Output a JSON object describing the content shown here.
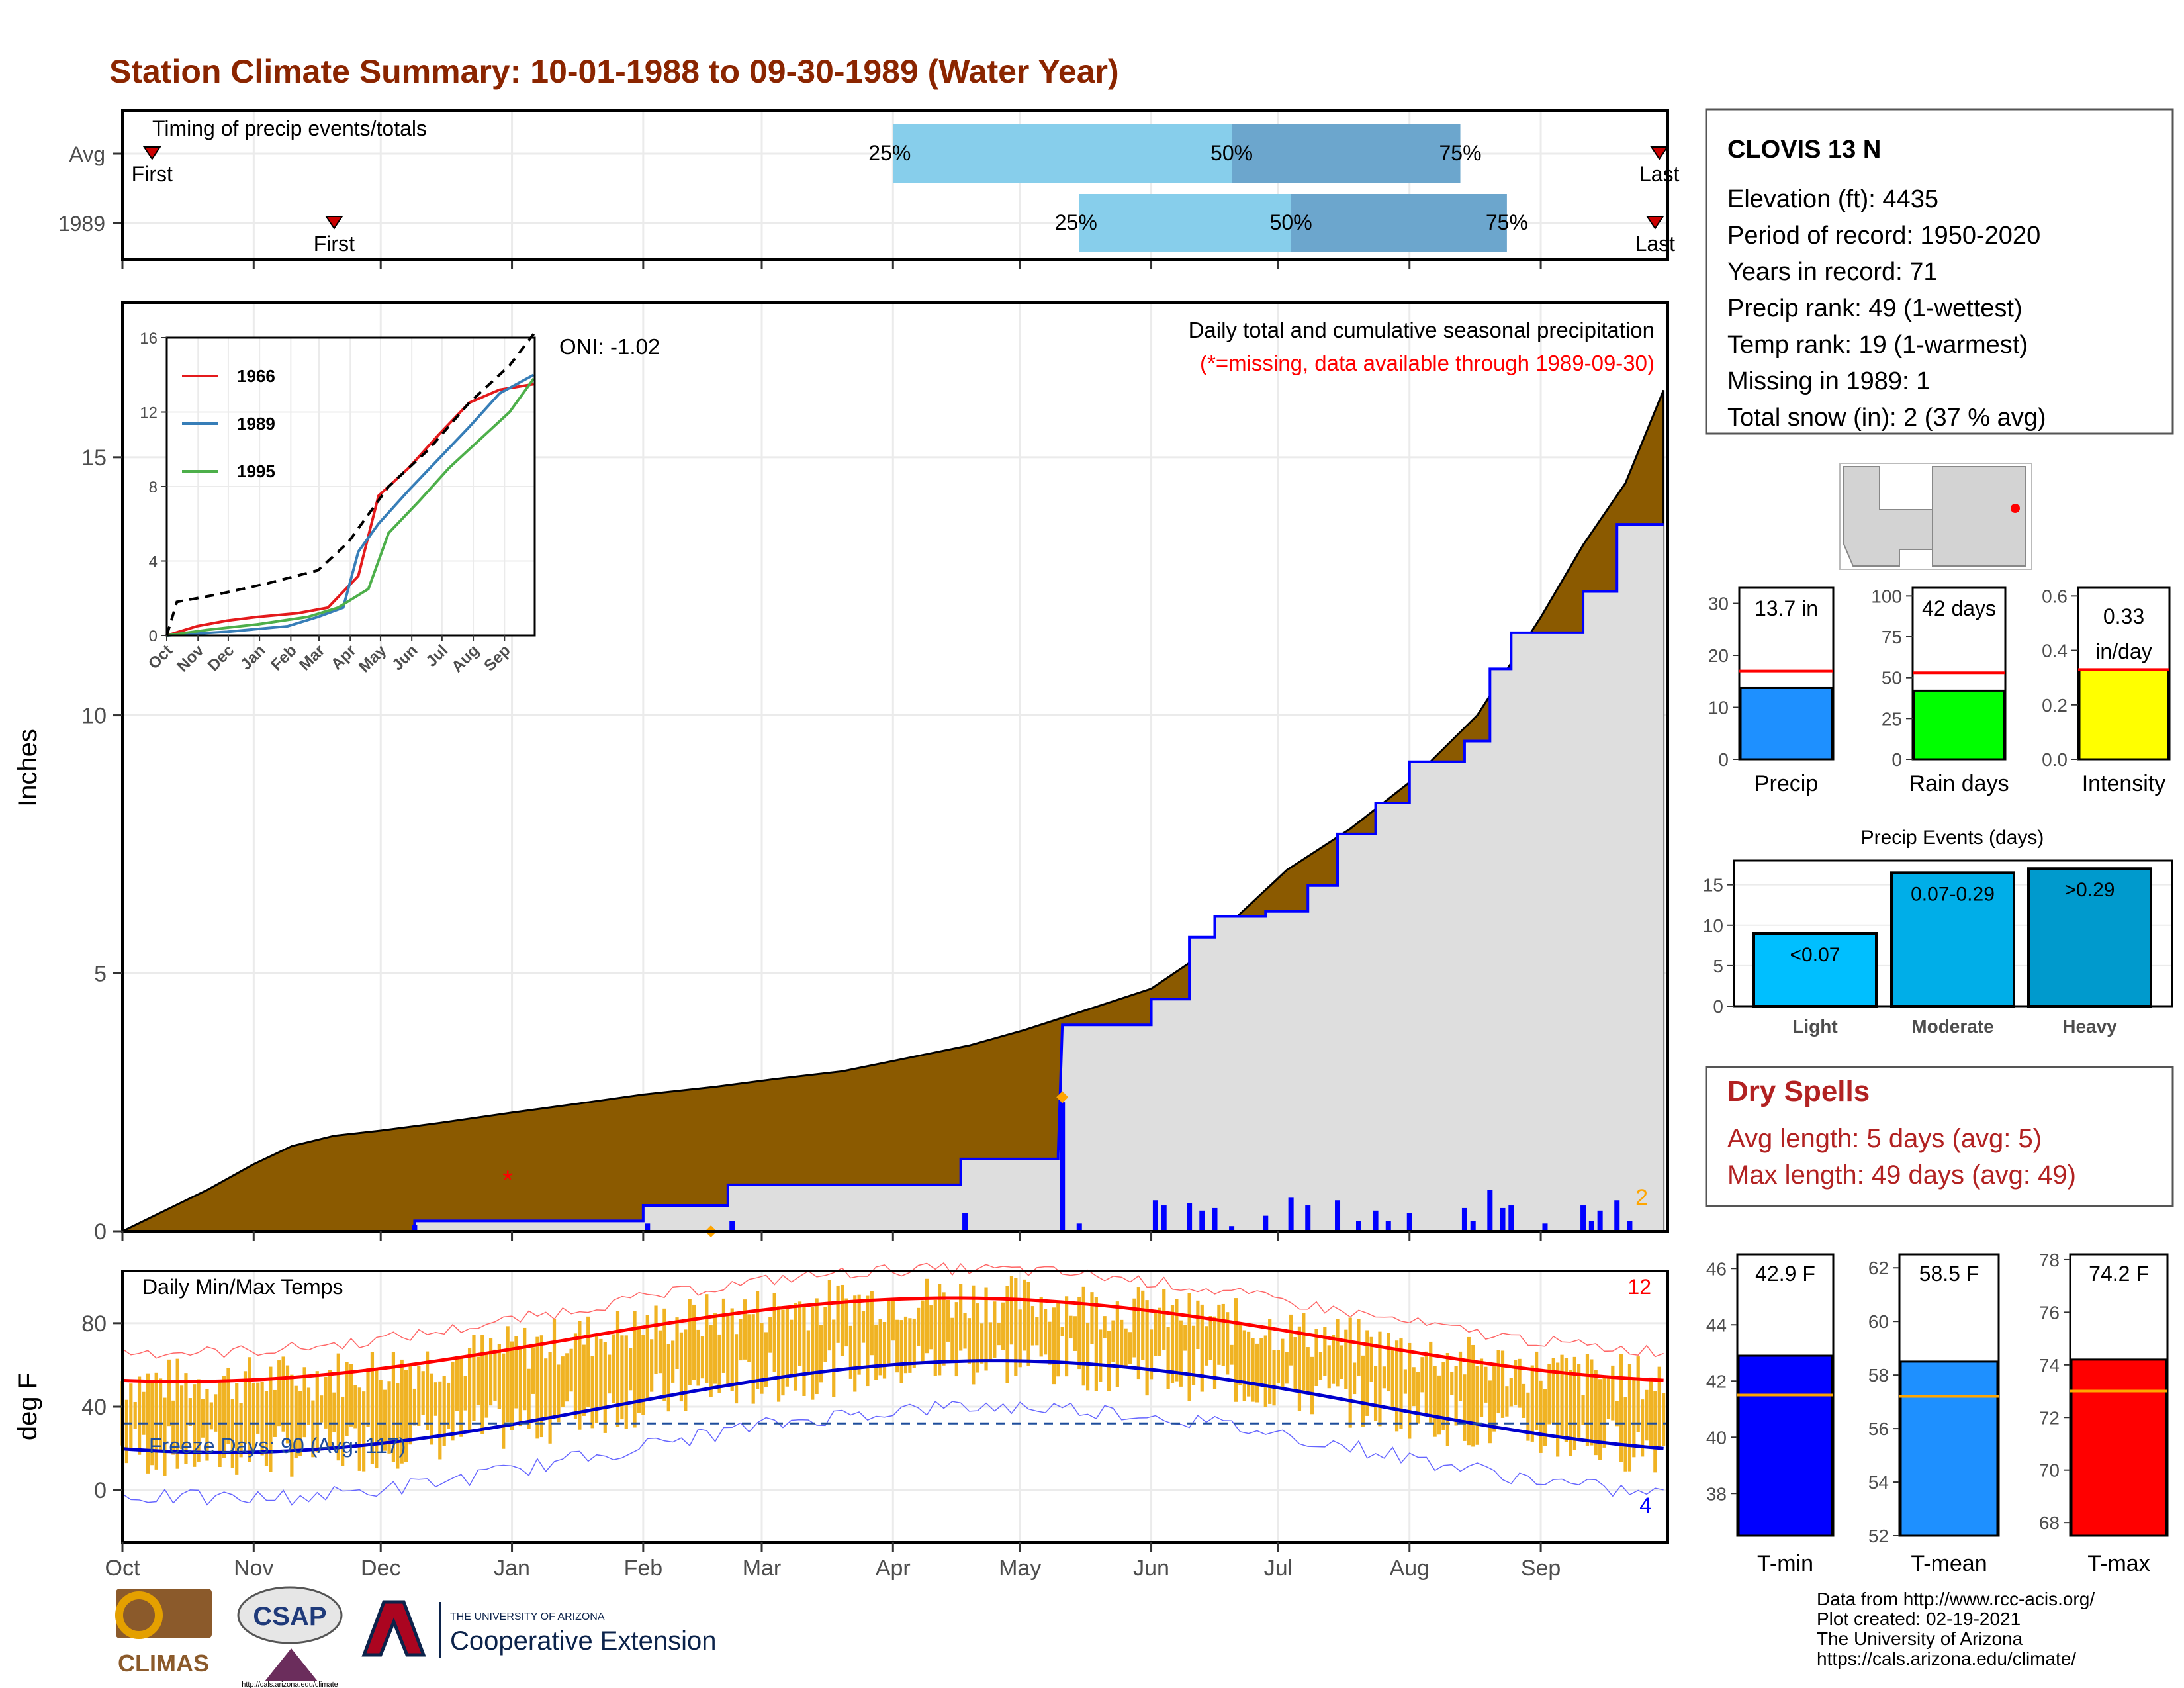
{
  "title": "Station Climate Summary: 10-01-1988 to 09-30-1989 (Water Year)",
  "colors": {
    "title": "#8B2500",
    "precip_fill": "#8B5A00",
    "obs_fill": "#DEDEDE",
    "obs_line": "#0000FF",
    "quartile_light": "#87CEEB",
    "quartile_dark": "#6CA6CD",
    "temp_bar": "#F0B323",
    "max_line": "#FF0000",
    "min_line": "#0000CC",
    "dry_spells": "#B22222",
    "missing": "#FF0000",
    "orange": "#FFA500"
  },
  "timing": {
    "label": "Timing of precip events/totals",
    "rows": [
      {
        "name": "Avg",
        "first_label": "First",
        "last_label": "Last",
        "first_doy": 7,
        "last_doy": 363,
        "q25_doy": 182,
        "q50_doy": 262,
        "q75_doy": 316,
        "q25": "25%",
        "q50": "50%",
        "q75": "75%"
      },
      {
        "name": "1989",
        "first_label": "First",
        "last_label": "Last",
        "first_doy": 50,
        "last_doy": 362,
        "q25_doy": 226,
        "q50_doy": 276,
        "q75_doy": 327,
        "q25": "25%",
        "q50": "50%",
        "q75": "75%"
      }
    ]
  },
  "months": [
    "Oct",
    "Nov",
    "Dec",
    "Jan",
    "Feb",
    "Mar",
    "Apr",
    "May",
    "Jun",
    "Jul",
    "Aug",
    "Sep"
  ],
  "precip": {
    "ylabel": "Inches",
    "yticks": [
      0,
      5,
      10,
      15
    ],
    "ymax": 18,
    "header": "Daily total and cumulative seasonal precipitation",
    "subheader": "(*=missing, data available through 1989-09-30)",
    "oni": "ONI: -1.02",
    "count_label": "2",
    "avg_cumulative": [
      [
        0,
        0
      ],
      [
        10,
        0.4
      ],
      [
        20,
        0.8
      ],
      [
        31,
        1.3
      ],
      [
        40,
        1.65
      ],
      [
        50,
        1.85
      ],
      [
        61,
        1.95
      ],
      [
        75,
        2.1
      ],
      [
        92,
        2.3
      ],
      [
        110,
        2.5
      ],
      [
        123,
        2.65
      ],
      [
        140,
        2.8
      ],
      [
        154,
        2.95
      ],
      [
        170,
        3.1
      ],
      [
        182,
        3.3
      ],
      [
        200,
        3.6
      ],
      [
        213,
        3.9
      ],
      [
        230,
        4.35
      ],
      [
        243,
        4.7
      ],
      [
        252,
        5.2
      ],
      [
        262,
        6.0
      ],
      [
        275,
        7.0
      ],
      [
        290,
        7.8
      ],
      [
        304,
        8.7
      ],
      [
        320,
        10.0
      ],
      [
        335,
        11.9
      ],
      [
        345,
        13.3
      ],
      [
        355,
        14.5
      ],
      [
        364,
        16.3
      ]
    ],
    "obs_cumulative": [
      [
        0,
        0
      ],
      [
        69,
        0
      ],
      [
        69,
        0.2
      ],
      [
        123,
        0.2
      ],
      [
        123,
        0.5
      ],
      [
        143,
        0.5
      ],
      [
        143,
        0.9
      ],
      [
        198,
        0.9
      ],
      [
        198,
        1.4
      ],
      [
        221,
        1.4
      ],
      [
        221,
        1.5
      ],
      [
        222,
        4.0
      ],
      [
        243,
        4.0
      ],
      [
        243,
        4.5
      ],
      [
        252,
        4.5
      ],
      [
        252,
        5.7
      ],
      [
        258,
        5.7
      ],
      [
        258,
        6.1
      ],
      [
        270,
        6.1
      ],
      [
        270,
        6.2
      ],
      [
        280,
        6.2
      ],
      [
        280,
        6.7
      ],
      [
        287,
        6.7
      ],
      [
        287,
        7.7
      ],
      [
        296,
        7.7
      ],
      [
        296,
        8.3
      ],
      [
        304,
        8.3
      ],
      [
        304,
        9.1
      ],
      [
        317,
        9.1
      ],
      [
        317,
        9.5
      ],
      [
        323,
        9.5
      ],
      [
        323,
        10.9
      ],
      [
        328,
        10.9
      ],
      [
        328,
        11.6
      ],
      [
        345,
        11.6
      ],
      [
        345,
        12.4
      ],
      [
        353,
        12.4
      ],
      [
        353,
        13.7
      ],
      [
        364,
        13.7
      ]
    ],
    "daily_bars": [
      [
        69,
        0.12
      ],
      [
        124,
        0.15
      ],
      [
        144,
        0.2
      ],
      [
        199,
        0.35
      ],
      [
        222,
        2.5
      ],
      [
        226,
        0.15
      ],
      [
        244,
        0.6
      ],
      [
        246,
        0.5
      ],
      [
        252,
        0.55
      ],
      [
        255,
        0.4
      ],
      [
        258,
        0.45
      ],
      [
        262,
        0.1
      ],
      [
        270,
        0.3
      ],
      [
        276,
        0.65
      ],
      [
        280,
        0.5
      ],
      [
        287,
        0.6
      ],
      [
        292,
        0.2
      ],
      [
        296,
        0.4
      ],
      [
        299,
        0.2
      ],
      [
        304,
        0.35
      ],
      [
        317,
        0.45
      ],
      [
        319,
        0.2
      ],
      [
        323,
        0.8
      ],
      [
        326,
        0.45
      ],
      [
        328,
        0.5
      ],
      [
        336,
        0.15
      ],
      [
        345,
        0.5
      ],
      [
        347,
        0.2
      ],
      [
        349,
        0.4
      ],
      [
        353,
        0.6
      ],
      [
        356,
        0.2
      ]
    ],
    "missing_marker": [
      91,
      1.0
    ],
    "orange_markers": [
      [
        222,
        2.6
      ],
      [
        139,
        0.0
      ]
    ]
  },
  "inset": {
    "yticks": [
      "0",
      "4",
      "8",
      "12",
      "16"
    ],
    "ymax": 16,
    "series": [
      {
        "name": "1966",
        "color": "#E41A1C",
        "points": [
          [
            0,
            0
          ],
          [
            30,
            0.5
          ],
          [
            60,
            0.8
          ],
          [
            90,
            1.0
          ],
          [
            130,
            1.2
          ],
          [
            160,
            1.5
          ],
          [
            190,
            3.2
          ],
          [
            210,
            7.5
          ],
          [
            240,
            9.0
          ],
          [
            270,
            10.8
          ],
          [
            300,
            12.5
          ],
          [
            330,
            13.2
          ],
          [
            364,
            13.5
          ]
        ]
      },
      {
        "name": "1989",
        "color": "#377EB8",
        "points": [
          [
            0,
            0
          ],
          [
            60,
            0.2
          ],
          [
            120,
            0.5
          ],
          [
            150,
            1.0
          ],
          [
            175,
            1.5
          ],
          [
            190,
            4.5
          ],
          [
            210,
            6.0
          ],
          [
            240,
            7.8
          ],
          [
            270,
            9.5
          ],
          [
            300,
            11.2
          ],
          [
            330,
            13.0
          ],
          [
            364,
            14.0
          ]
        ]
      },
      {
        "name": "1995",
        "color": "#4DAF4A",
        "points": [
          [
            0,
            0
          ],
          [
            40,
            0.3
          ],
          [
            90,
            0.6
          ],
          [
            140,
            1.0
          ],
          [
            170,
            1.5
          ],
          [
            200,
            2.5
          ],
          [
            220,
            5.5
          ],
          [
            250,
            7.2
          ],
          [
            280,
            9.0
          ],
          [
            310,
            10.5
          ],
          [
            340,
            12.0
          ],
          [
            364,
            13.8
          ]
        ]
      },
      {
        "name": "",
        "color": "#000000",
        "dashed": true,
        "points": [
          [
            0,
            0
          ],
          [
            10,
            1.8
          ],
          [
            50,
            2.2
          ],
          [
            100,
            2.8
          ],
          [
            150,
            3.5
          ],
          [
            180,
            5.0
          ],
          [
            220,
            8.0
          ],
          [
            260,
            10.0
          ],
          [
            300,
            12.5
          ],
          [
            340,
            14.5
          ],
          [
            364,
            16.2
          ]
        ]
      }
    ]
  },
  "temp": {
    "ylabel": "deg F",
    "title": "Daily Min/Max Temps",
    "yticks": [
      0,
      40,
      80
    ],
    "ymin": -25,
    "ymax": 105,
    "freeze_label": "Freeze Days: 90 (Avg: 117)",
    "freeze_line": 32,
    "top_count": "12",
    "bottom_count": "4"
  },
  "station": {
    "name": "CLOVIS 13 N",
    "lines": [
      "Elevation (ft): 4435",
      "Period of record: 1950-2020",
      "Years in record: 71",
      "Precip rank: 49 (1-wettest)",
      "Temp rank: 19 (1-warmest)",
      "Missing in 1989: 1",
      "Total snow (in): 2 (37 % avg)"
    ]
  },
  "mini_bars": [
    {
      "label": "Precip",
      "value": 13.7,
      "avg": 17.0,
      "ymax": 33,
      "ticks": [
        0,
        10,
        20,
        30
      ],
      "color": "#1E90FF",
      "text1": "13.7 in",
      "text2": ""
    },
    {
      "label": "Rain days",
      "value": 42,
      "avg": 53,
      "ymax": 105,
      "ticks": [
        0,
        25,
        50,
        75,
        100
      ],
      "color": "#00FF00",
      "text1": "42 days",
      "text2": ""
    },
    {
      "label": "Intensity",
      "value": 0.33,
      "avg": 0.33,
      "ymax": 0.63,
      "ticks": [
        "0.0",
        "0.2",
        "0.4",
        "0.6"
      ],
      "color": "#FFFF00",
      "text1": "0.33",
      "text2": "in/day"
    }
  ],
  "events": {
    "title": "Precip Events (days)",
    "yticks": [
      0,
      5,
      10,
      15
    ],
    "ymax": 18,
    "bars": [
      {
        "label": "Light",
        "value": 9,
        "text": "<0.07",
        "color": "#00BFFF"
      },
      {
        "label": "Moderate",
        "value": 16.5,
        "text": "0.07-0.29",
        "color": "#00AEE8"
      },
      {
        "label": "Heavy",
        "value": 17,
        "text": ">0.29",
        "color": "#009ACD"
      }
    ]
  },
  "dry_spells": {
    "title": "Dry Spells",
    "lines": [
      "Avg length: 5 days (avg: 5)",
      "Max length: 49 days (avg: 49)"
    ]
  },
  "temp_bars": [
    {
      "label": "T-min",
      "value": 42.9,
      "avg": 41.5,
      "ymin": 36.5,
      "ymax": 46.5,
      "ticks": [
        38,
        40,
        42,
        44,
        46
      ],
      "color": "#0000FF",
      "text": "42.9 F"
    },
    {
      "label": "T-mean",
      "value": 58.5,
      "avg": 57.2,
      "ymin": 52,
      "ymax": 62.5,
      "ticks": [
        52,
        54,
        56,
        58,
        60,
        62
      ],
      "color": "#1E90FF",
      "text": "58.5 F"
    },
    {
      "label": "T-max",
      "value": 74.2,
      "avg": 73.0,
      "ymin": 67.5,
      "ymax": 78.2,
      "ticks": [
        68,
        70,
        72,
        74,
        76,
        78
      ],
      "color": "#FF0000",
      "text": "74.2 F"
    }
  ],
  "footer": {
    "lines": [
      "Data from http://www.rcc-acis.org/",
      "Plot created: 02-19-2021",
      "The University of Arizona",
      "https://cals.arizona.edu/climate/"
    ],
    "logo_climas": "CLIMAS",
    "logo_csap": "CSAP",
    "csap_url": "http://cals.arizona.edu/climate",
    "ua_small": "THE UNIVERSITY OF ARIZONA",
    "ua_big": "Cooperative Extension"
  }
}
